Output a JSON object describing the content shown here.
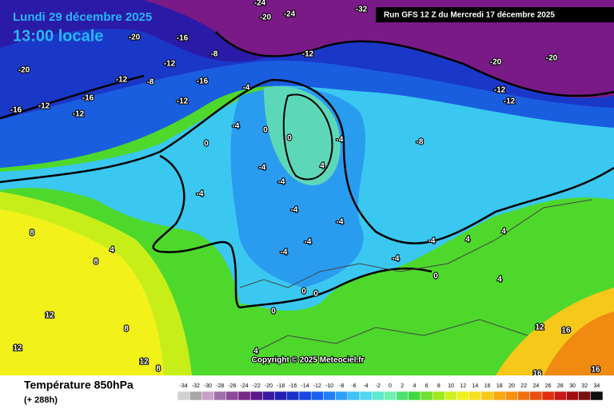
{
  "header": {
    "date": "Lundi 29 décembre 2025",
    "time": "13:00 locale",
    "run": "Run GFS 12 Z du Mercredi 17 décembre 2025"
  },
  "copyright": "Copyright © 2025 Meteociel.fr",
  "contour_labels": [
    "-20",
    "-16",
    "-12",
    "-12",
    "-16",
    "-12",
    "-8",
    "-12",
    "-16",
    "-8",
    "-20",
    "-16",
    "-12",
    "-4",
    "-4",
    "0",
    "0",
    "-4",
    "-4",
    "-4",
    "0",
    "-4",
    "-4",
    "-4",
    "0",
    "0",
    "0",
    "-4",
    "-4",
    "0",
    "-4",
    "4",
    "-4",
    "-8",
    "-12",
    "-20",
    "-20",
    "-12",
    "-12",
    "4",
    "4",
    "4",
    "8",
    "12",
    "12",
    "12",
    "8",
    "4",
    "8",
    "4",
    "8",
    "12",
    "16",
    "16",
    "16",
    "-24",
    "-32",
    "-24",
    "-20"
  ],
  "legend": {
    "title": "Température 850hPa",
    "lead": "(+ 288h)",
    "scale": [
      -34,
      -32,
      -30,
      -28,
      -26,
      -24,
      -22,
      -20,
      -18,
      -16,
      -14,
      -12,
      -10,
      -8,
      -6,
      -4,
      -2,
      0,
      2,
      4,
      6,
      8,
      10,
      12,
      14,
      16,
      18,
      20,
      22,
      24,
      26,
      28,
      30,
      32,
      34
    ],
    "colors": [
      "#d0d0d0",
      "#a8a8a8",
      "#c8a0c8",
      "#a070a8",
      "#8a4a9a",
      "#78288a",
      "#5a1a8a",
      "#3a1aa0",
      "#2020b0",
      "#1a30c8",
      "#1a48e0",
      "#1a60f0",
      "#2080f8",
      "#30a0f8",
      "#40c0f8",
      "#50d8f0",
      "#60e8d0",
      "#70f0b0",
      "#50e070",
      "#40d840",
      "#70e030",
      "#a0e820",
      "#d0f020",
      "#f0f020",
      "#f8e020",
      "#f8c818",
      "#f8a810",
      "#f89010",
      "#f07010",
      "#e85010",
      "#e03010",
      "#c81818",
      "#a01010",
      "#781010",
      "#101010"
    ]
  }
}
